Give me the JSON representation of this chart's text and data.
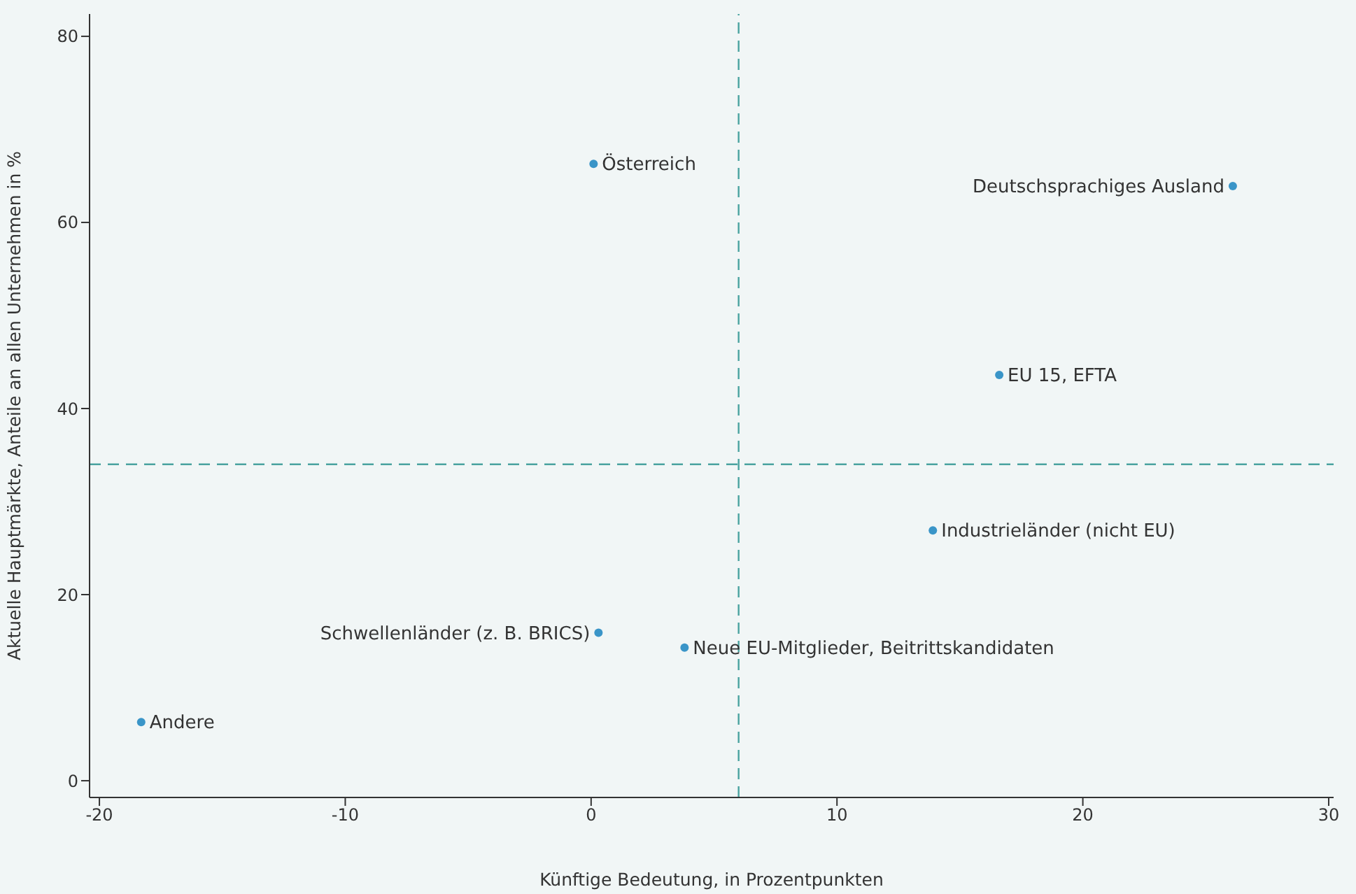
{
  "chart_data": {
    "type": "scatter",
    "xlabel": "Künftige Bedeutung, in Prozentpunkten",
    "ylabel": "Aktuelle Hauptmärkte, Anteile an allen Unternehmen in %",
    "series": [
      {
        "type": "scatter",
        "color": "#3a95c8",
        "x": [
          0.1,
          26.1,
          16.6,
          13.9,
          0.3,
          3.8,
          -18.3
        ],
        "values": [
          66.3,
          63.9,
          43.6,
          26.9,
          15.9,
          14.3,
          6.3
        ]
      }
    ],
    "annotations": [
      {
        "text": "Österreich",
        "x": 0.1,
        "y": 66.3
      },
      {
        "text": "Deutschsprachiges Ausland",
        "x": 26.1,
        "y": 63.9
      },
      {
        "text": "EU 15, EFTA",
        "x": 16.6,
        "y": 43.6
      },
      {
        "text": "Industrieländer (nicht EU)",
        "x": 13.9,
        "y": 26.9
      },
      {
        "text": "Schwellenländer (z. B. BRICS)",
        "x": 0.3,
        "y": 15.9
      },
      {
        "text": "Neue EU-Mitglieder, Beitrittskandidaten",
        "x": 3.8,
        "y": 14.3
      },
      {
        "text": "Andere",
        "x": -18.3,
        "y": 6.3
      }
    ],
    "ref_lines": [
      {
        "axis": "x",
        "value": 6,
        "color": "#4aa3a0",
        "line_style": "dashed"
      },
      {
        "axis": "y",
        "value": 34,
        "color": "#4aa3a0",
        "line_style": "dashed"
      }
    ],
    "xlim": [
      -20.4,
      30.2
    ],
    "xticks": [
      -20,
      -10,
      0,
      10,
      20,
      30
    ],
    "ylim": [
      -1.8,
      82.4
    ],
    "yticks": [
      0,
      20,
      40,
      60,
      80
    ],
    "grid": false,
    "legend": false,
    "marker": "circle"
  }
}
